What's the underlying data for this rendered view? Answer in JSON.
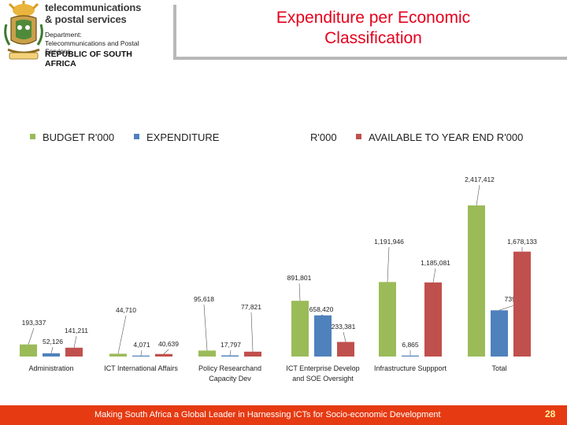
{
  "header": {
    "brand_line1": "telecommunications",
    "brand_line2": "& postal services",
    "dept_line1": "Department:",
    "dept_line2": "Telecommunications and Postal Services",
    "country": "REPUBLIC OF SOUTH AFRICA",
    "title_line1": "Expenditure per Economic",
    "title_line2": "Classification"
  },
  "legend": {
    "budget": "BUDGET R'000",
    "expenditure_a": "EXPENDITURE",
    "expenditure_b": "R'000",
    "available": "AVAILABLE TO YEAR END R'000"
  },
  "colors": {
    "budget": "#9bbb59",
    "expenditure": "#4f81bd",
    "available": "#c0504d",
    "title": "#e5001c",
    "footer": "#e63a12"
  },
  "chart_data": {
    "type": "bar",
    "categories": [
      [
        "Administration"
      ],
      [
        "ICT International Affairs"
      ],
      [
        "Policy Researchand",
        "Capacity Dev"
      ],
      [
        "ICT Enterprise Develop",
        "and SOE Oversight"
      ],
      [
        "Infrastructure Suppport"
      ],
      [
        "Total"
      ]
    ],
    "series": [
      {
        "key": "budget",
        "values": [
          193337,
          44710,
          95618,
          891801,
          1191946,
          2417412
        ]
      },
      {
        "key": "expenditure",
        "values": [
          52126,
          4071,
          17797,
          658420,
          6865,
          739279
        ]
      },
      {
        "key": "available",
        "values": [
          141211,
          40639,
          77821,
          233381,
          1185081,
          1678133
        ]
      }
    ],
    "value_labels": [
      [
        "193,337",
        "52,126",
        "141,211"
      ],
      [
        "44,710",
        "4,071",
        "40,639"
      ],
      [
        "95,618",
        "17,797",
        "77,821"
      ],
      [
        "891,801",
        "658,420",
        "233,381"
      ],
      [
        "1,191,946",
        "6,865",
        "1,185,081"
      ],
      [
        "2,417,412",
        "739,279",
        "1,678,133"
      ]
    ],
    "ylim": [
      0,
      2417412
    ]
  },
  "footer": {
    "text": "Making South Africa a Global Leader in Harnessing ICTs for Socio-economic Development",
    "page": "28"
  }
}
